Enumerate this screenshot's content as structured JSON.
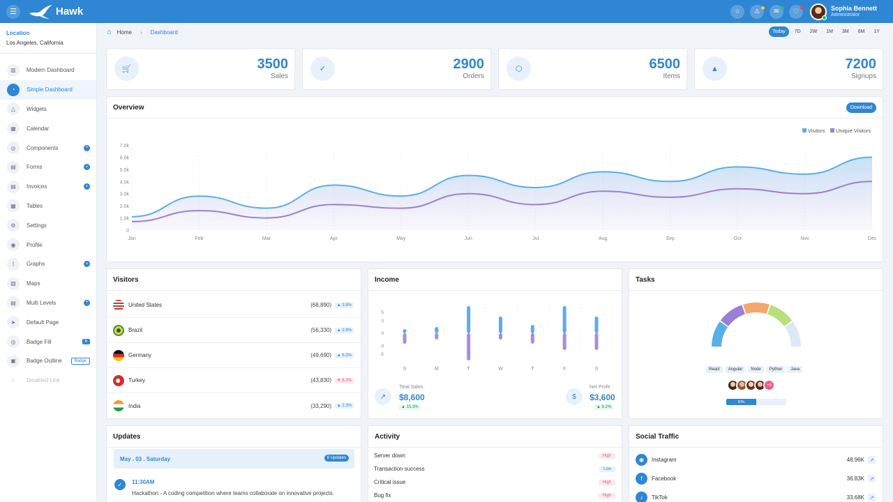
{
  "app": {
    "name": "Hawk"
  },
  "user": {
    "name": "Sophia Bennett",
    "role": "Administrator"
  },
  "location": {
    "label": "Location",
    "value": "Los Angeles, California"
  },
  "nav": [
    {
      "label": "Modern Dashboard",
      "icon": "bar-chart-icon"
    },
    {
      "label": "Simple Dashboard",
      "icon": "pie-chart-icon",
      "active": true
    },
    {
      "label": "Widgets",
      "icon": "triangle-icon"
    },
    {
      "label": "Calendar",
      "icon": "calendar-icon"
    },
    {
      "label": "Components",
      "icon": "components-icon",
      "dot": "+"
    },
    {
      "label": "Forms",
      "icon": "form-icon",
      "dot": "+"
    },
    {
      "label": "Invoices",
      "icon": "invoice-icon",
      "dot": "+"
    },
    {
      "label": "Tables",
      "icon": "table-icon"
    },
    {
      "label": "Settings",
      "icon": "gear-icon"
    },
    {
      "label": "Profile",
      "icon": "user-icon"
    },
    {
      "label": "Graphs",
      "icon": "graph-icon",
      "dot": "+"
    },
    {
      "label": "Maps",
      "icon": "map-icon"
    },
    {
      "label": "Multi Levels",
      "icon": "layers-icon",
      "dot": "+"
    },
    {
      "label": "Default Page",
      "icon": "send-icon"
    },
    {
      "label": "Badge Fill",
      "icon": "badge-icon",
      "badge_fill": "6"
    },
    {
      "label": "Badge Outline",
      "icon": "badge-outline-icon",
      "badge_outline": "Badge"
    },
    {
      "label": "Disabled Link",
      "icon": "search-icon",
      "disabled": true
    }
  ],
  "breadcrumb": {
    "home": "Home",
    "current": "Dashboard"
  },
  "ranges": [
    "Today",
    "7D",
    "2W",
    "1M",
    "3M",
    "6M",
    "1Y"
  ],
  "stats": [
    {
      "value": "3500",
      "label": "Sales",
      "icon": "cart-icon"
    },
    {
      "value": "2900",
      "label": "Orders",
      "icon": "check-circle-icon"
    },
    {
      "value": "6500",
      "label": "Items",
      "icon": "box-icon"
    },
    {
      "value": "7200",
      "label": "Signups",
      "icon": "triangle-icon"
    }
  ],
  "overview": {
    "title": "Overview",
    "download": "Download"
  },
  "chart_data": [
    {
      "type": "area",
      "categories": [
        "Jan",
        "Feb",
        "Mar",
        "Apr",
        "May",
        "Jun",
        "Jul",
        "Aug",
        "Sep",
        "Oct",
        "Nov",
        "Dec"
      ],
      "series": [
        {
          "name": "Visitors",
          "color": "#5aaee8",
          "values": [
            1100,
            2800,
            1800,
            3700,
            2800,
            4500,
            3500,
            4800,
            4000,
            5200,
            4600,
            6000
          ]
        },
        {
          "name": "Unique Visitors",
          "color": "#9b7fd4",
          "values": [
            700,
            1600,
            1000,
            2100,
            1800,
            3000,
            2100,
            3200,
            2700,
            3400,
            3000,
            4000
          ]
        }
      ],
      "ylim": [
        0,
        7000
      ],
      "yticks": [
        "0",
        "1.0k",
        "2.0k",
        "3.0k",
        "4.0k",
        "5.0k",
        "6.0k",
        "7.0k"
      ],
      "legend": "top-right",
      "grid": true
    },
    {
      "type": "bar",
      "categories": [
        "S",
        "M",
        "T",
        "W",
        "T",
        "F",
        "S"
      ],
      "series": [
        {
          "name": "positive",
          "color": "#5aaee8",
          "values": [
            1,
            1.5,
            6.5,
            4,
            2,
            6.5,
            4
          ]
        },
        {
          "name": "negative",
          "color": "#a98ce0",
          "values": [
            -2.5,
            -1.5,
            -6.5,
            -1.5,
            -2.5,
            -4,
            -4
          ]
        }
      ],
      "ylim": [
        -6,
        6
      ],
      "yticks": [
        "5",
        "3",
        "0",
        "-3",
        "-5"
      ]
    },
    {
      "type": "pie",
      "categories": [
        "React",
        "Angular",
        "Node",
        "Python",
        "Java"
      ],
      "series": [
        {
          "name": "Tasks",
          "values": [
            20,
            20,
            20,
            20,
            20
          ]
        }
      ],
      "colors": [
        "#5aaee8",
        "#9b7fd4",
        "#f4a76e",
        "#b8e07a",
        "#dde8f6"
      ]
    }
  ],
  "visitors": {
    "title": "Visitors",
    "rows": [
      {
        "country": "United States",
        "count": "(68,890)",
        "delta": "▲ 3.9%",
        "dir": "up",
        "flag": "flag-us-icon"
      },
      {
        "country": "Brazil",
        "count": "(56,330)",
        "delta": "▲ 2.8%",
        "dir": "up",
        "flag": "flag-br-icon"
      },
      {
        "country": "Germany",
        "count": "(49,690)",
        "delta": "▲ 6.3%",
        "dir": "up",
        "flag": "flag-de-icon"
      },
      {
        "country": "Turkey",
        "count": "(43,830)",
        "delta": "▼ 8.2%",
        "dir": "down",
        "flag": "flag-tr-icon"
      },
      {
        "country": "India",
        "count": "(33,290)",
        "delta": "▲ 2.3%",
        "dir": "up",
        "flag": "flag-in-icon"
      }
    ]
  },
  "income": {
    "title": "Income",
    "total_label": "Total Sales",
    "total_value": "$8,600",
    "total_delta": "▲ 15.3%",
    "profit_label": "Net Profit",
    "profit_value": "$3,600",
    "profit_delta": "▲ 8.2%"
  },
  "tasks": {
    "title": "Tasks",
    "progress": "50%"
  },
  "updates": {
    "title": "Updates",
    "date": "May . 03 . Saturday",
    "count": "6 Updates",
    "time": "11:30AM",
    "text": "Hackathon - A coding competition where teams collaborate on innovative projects."
  },
  "activity": {
    "title": "Activity",
    "rows": [
      {
        "label": "Server down",
        "priority": "High"
      },
      {
        "label": "Transaction success",
        "priority": "Low"
      },
      {
        "label": "Critical issue",
        "priority": "High"
      },
      {
        "label": "Bug fix",
        "priority": "High"
      }
    ]
  },
  "social": {
    "title": "Social Traffic",
    "rows": [
      {
        "name": "Instagram",
        "value": "48.96K",
        "icon": "instagram-icon",
        "glyph": "◉"
      },
      {
        "name": "Facebook",
        "value": "36.83K",
        "icon": "facebook-icon",
        "glyph": "f"
      },
      {
        "name": "TikTok",
        "value": "33.68K",
        "icon": "tiktok-icon",
        "glyph": "♪"
      }
    ]
  },
  "colors": {
    "primary": "#2f86d4",
    "visitors": "#5aaee8",
    "unique": "#9b7fd4"
  }
}
